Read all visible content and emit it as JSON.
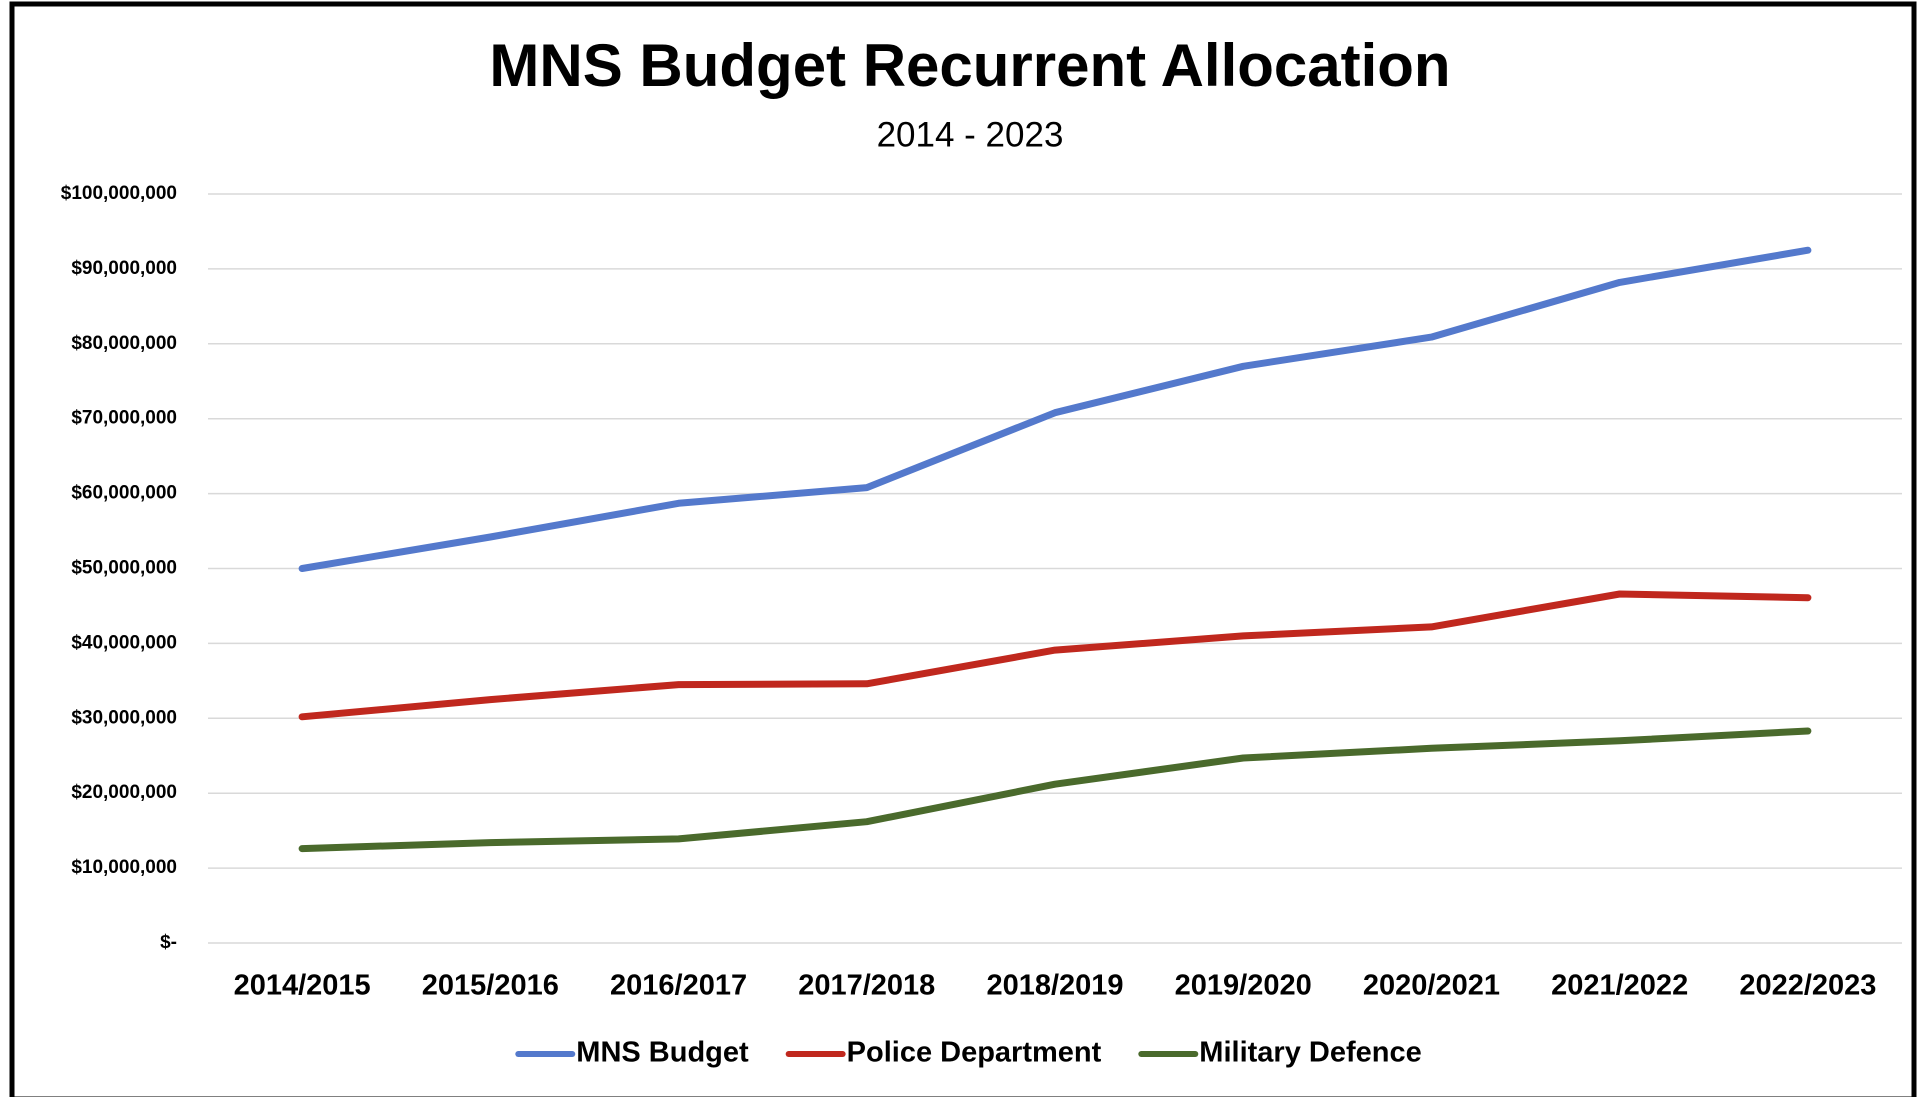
{
  "chart_data": {
    "type": "line",
    "title": "MNS Budget Recurrent Allocation",
    "subtitle": "2014 - 2023",
    "categories": [
      "2014/2015",
      "2015/2016",
      "2016/2017",
      "2017/2018",
      "2018/2019",
      "2019/2020",
      "2020/2021",
      "2021/2022",
      "2022/2023"
    ],
    "series": [
      {
        "name": "MNS Budget",
        "color": "#5479cc",
        "values": [
          50000000,
          54200000,
          58700000,
          60800000,
          70800000,
          77000000,
          80900000,
          88200000,
          92500000
        ]
      },
      {
        "name": "Police Department",
        "color": "#c0281e",
        "values": [
          30200000,
          32500000,
          34500000,
          34600000,
          39100000,
          41000000,
          42200000,
          46600000,
          46100000
        ]
      },
      {
        "name": "Military Defence",
        "color": "#4a6a2c",
        "values": [
          12600000,
          13400000,
          13900000,
          16200000,
          21200000,
          24700000,
          26000000,
          27000000,
          28300000
        ]
      }
    ],
    "ylim": [
      0,
      100000000
    ],
    "yticks": [
      {
        "value": 0,
        "label": "$-"
      },
      {
        "value": 10000000,
        "label": "$10,000,000"
      },
      {
        "value": 20000000,
        "label": "$20,000,000"
      },
      {
        "value": 30000000,
        "label": "$30,000,000"
      },
      {
        "value": 40000000,
        "label": "$40,000,000"
      },
      {
        "value": 50000000,
        "label": "$50,000,000"
      },
      {
        "value": 60000000,
        "label": "$60,000,000"
      },
      {
        "value": 70000000,
        "label": "$70,000,000"
      },
      {
        "value": 80000000,
        "label": "$80,000,000"
      },
      {
        "value": 90000000,
        "label": "$90,000,000"
      },
      {
        "value": 100000000,
        "label": "$100,000,000"
      }
    ],
    "grid": true,
    "legend": "bottom"
  }
}
